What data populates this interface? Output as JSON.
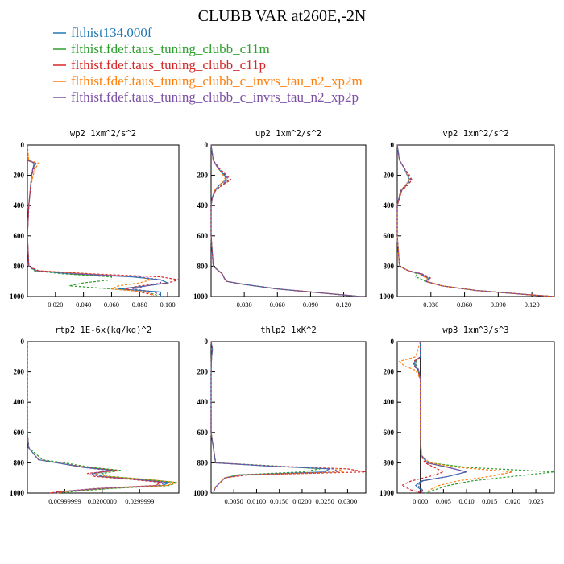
{
  "title": "CLUBB VAR at260E,-2N",
  "colors": {
    "blue": "#1f77b4",
    "green": "#2ca02c",
    "red": "#d62728",
    "orange": "#ff7f0e",
    "purple": "#7b4fa6"
  },
  "legend": [
    {
      "label": "flthist134.000f",
      "color": "#1f77b4"
    },
    {
      "label": "flthist.fdef.taus_tuning_clubb_c11m",
      "color": "#2ca02c"
    },
    {
      "label": "flthist.fdef.taus_tuning_clubb_c11p",
      "color": "#d62728"
    },
    {
      "label": "flthist.fdef.taus_tuning_clubb_c_invrs_tau_n2_xp2m",
      "color": "#ff7f0e"
    },
    {
      "label": "flthist.fdef.taus_tuning_clubb_c_invrs_tau_n2_xp2p",
      "color": "#7b4fa6"
    }
  ],
  "chart_data": [
    {
      "type": "line",
      "title": "wp2  1xm^2/s^2",
      "xlim": [
        0,
        0.108
      ],
      "ylim": [
        1000,
        0
      ],
      "xticks": [
        0.02,
        0.04,
        0.06,
        0.08,
        0.1
      ],
      "xtick_labels": [
        "0.020",
        "0.040",
        "0.060",
        "0.080",
        "0.100"
      ],
      "yticks": [
        0,
        200,
        400,
        600,
        800,
        1000
      ],
      "y": [
        0,
        100,
        120,
        150,
        200,
        300,
        400,
        600,
        800,
        830,
        850,
        870,
        890,
        910,
        930,
        950,
        970,
        990,
        1000
      ],
      "series": [
        {
          "color": "#1f77b4",
          "values": [
            0,
            0.0,
            0.006,
            0.004,
            0.003,
            0.002,
            0.001,
            0,
            0.001,
            0.006,
            0.03,
            0.075,
            0.095,
            0.1,
            0.085,
            0.065,
            0.095,
            0.095,
            0.095
          ]
        },
        {
          "color": "#2ca02c",
          "values": [
            0,
            0.0,
            0.005,
            0.004,
            0.003,
            0.002,
            0.001,
            0,
            0.001,
            0.005,
            0.025,
            0.06,
            0.06,
            0.04,
            0.03,
            0.06,
            0.085,
            0.092,
            0.092
          ]
        },
        {
          "color": "#d62728",
          "values": [
            0,
            0.0,
            0.006,
            0.005,
            0.003,
            0.002,
            0.001,
            0,
            0.001,
            0.008,
            0.045,
            0.095,
            0.108,
            0.1,
            0.08,
            0.07,
            0.08,
            0.09,
            0.09
          ]
        },
        {
          "color": "#ff7f0e",
          "values": [
            0,
            0.001,
            0.008,
            0.006,
            0.004,
            0.002,
            0.001,
            0,
            0.001,
            0.007,
            0.04,
            0.08,
            0.088,
            0.08,
            0.065,
            0.06,
            0.085,
            0.09,
            0.09
          ]
        },
        {
          "color": "#7b4fa6",
          "values": [
            0,
            0.0,
            0.005,
            0.004,
            0.003,
            0.002,
            0.001,
            0,
            0.001,
            0.006,
            0.035,
            0.08,
            0.095,
            0.095,
            0.085,
            0.075,
            0.09,
            0.095,
            0.095
          ]
        }
      ]
    },
    {
      "type": "line",
      "title": "up2  1xm^2/s^2",
      "xlim": [
        0,
        0.14
      ],
      "ylim": [
        1000,
        0
      ],
      "xticks": [
        0.03,
        0.06,
        0.09,
        0.12
      ],
      "xtick_labels": [
        "0.030",
        "0.060",
        "0.090",
        "0.120"
      ],
      "yticks": [
        0,
        200,
        400,
        600,
        800,
        1000
      ],
      "y": [
        0,
        100,
        150,
        200,
        230,
        260,
        300,
        350,
        400,
        600,
        800,
        850,
        880,
        900,
        920,
        950,
        970,
        990,
        1000
      ],
      "series": [
        {
          "color": "#1f77b4",
          "values": [
            0,
            0.002,
            0.006,
            0.012,
            0.014,
            0.008,
            0.003,
            0.001,
            0,
            0,
            0.002,
            0.01,
            0.012,
            0.014,
            0.03,
            0.06,
            0.09,
            0.12,
            0.135
          ]
        },
        {
          "color": "#2ca02c",
          "values": [
            0,
            0.002,
            0.006,
            0.013,
            0.016,
            0.01,
            0.004,
            0.001,
            0,
            0,
            0.002,
            0.01,
            0.012,
            0.014,
            0.03,
            0.06,
            0.09,
            0.12,
            0.135
          ]
        },
        {
          "color": "#d62728",
          "values": [
            0,
            0.002,
            0.007,
            0.014,
            0.018,
            0.011,
            0.004,
            0.001,
            0,
            0,
            0.002,
            0.01,
            0.012,
            0.014,
            0.03,
            0.06,
            0.09,
            0.12,
            0.135
          ]
        },
        {
          "color": "#ff7f0e",
          "values": [
            0,
            0.002,
            0.006,
            0.011,
            0.013,
            0.008,
            0.003,
            0.001,
            0,
            0,
            0.002,
            0.01,
            0.012,
            0.014,
            0.03,
            0.06,
            0.09,
            0.12,
            0.135
          ]
        },
        {
          "color": "#7b4fa6",
          "values": [
            0,
            0.002,
            0.006,
            0.013,
            0.016,
            0.01,
            0.004,
            0.001,
            0,
            0,
            0.002,
            0.01,
            0.012,
            0.014,
            0.03,
            0.06,
            0.09,
            0.12,
            0.135
          ]
        }
      ]
    },
    {
      "type": "line",
      "title": "vp2  1xm^2/s^2",
      "xlim": [
        0,
        0.14
      ],
      "ylim": [
        1000,
        0
      ],
      "xticks": [
        0.03,
        0.06,
        0.09,
        0.12
      ],
      "xtick_labels": [
        "0.030",
        "0.060",
        "0.090",
        "0.120"
      ],
      "yticks": [
        0,
        200,
        400,
        600,
        800,
        1000
      ],
      "y": [
        0,
        100,
        150,
        200,
        230,
        260,
        300,
        400,
        600,
        800,
        830,
        850,
        870,
        880,
        900,
        930,
        960,
        990,
        1000
      ],
      "series": [
        {
          "color": "#1f77b4",
          "values": [
            0,
            0.002,
            0.006,
            0.009,
            0.011,
            0.008,
            0.003,
            0,
            0,
            0.002,
            0.01,
            0.02,
            0.025,
            0.028,
            0.025,
            0.04,
            0.07,
            0.12,
            0.14
          ]
        },
        {
          "color": "#2ca02c",
          "values": [
            0,
            0.002,
            0.006,
            0.01,
            0.012,
            0.009,
            0.004,
            0,
            0,
            0.002,
            0.01,
            0.018,
            0.016,
            0.02,
            0.025,
            0.04,
            0.07,
            0.12,
            0.14
          ]
        },
        {
          "color": "#d62728",
          "values": [
            0,
            0.002,
            0.006,
            0.011,
            0.013,
            0.01,
            0.004,
            0,
            0,
            0.002,
            0.01,
            0.022,
            0.028,
            0.03,
            0.026,
            0.04,
            0.07,
            0.12,
            0.14
          ]
        },
        {
          "color": "#ff7f0e",
          "values": [
            0,
            0.002,
            0.006,
            0.009,
            0.011,
            0.008,
            0.003,
            0,
            0,
            0.002,
            0.01,
            0.02,
            0.024,
            0.027,
            0.025,
            0.04,
            0.07,
            0.12,
            0.14
          ]
        },
        {
          "color": "#7b4fa6",
          "values": [
            0,
            0.002,
            0.006,
            0.01,
            0.012,
            0.009,
            0.003,
            0,
            0,
            0.002,
            0.01,
            0.021,
            0.026,
            0.029,
            0.026,
            0.04,
            0.07,
            0.12,
            0.14
          ]
        }
      ]
    },
    {
      "type": "line",
      "title": "rtp2  1E-6x(kg/kg)^2",
      "xlim": [
        0,
        0.0405
      ],
      "ylim": [
        1000,
        0
      ],
      "xticks": [
        0.01,
        0.02,
        0.03
      ],
      "xtick_labels": [
        "0.00999999",
        "0.0200000",
        "0.0299999"
      ],
      "yticks": [
        0,
        200,
        400,
        600,
        800,
        1000
      ],
      "y": [
        0,
        200,
        400,
        600,
        700,
        780,
        800,
        830,
        850,
        870,
        890,
        910,
        930,
        950,
        970,
        990,
        1000
      ],
      "series": [
        {
          "color": "#1f77b4",
          "values": [
            0,
            0,
            0,
            0,
            0.0003,
            0.003,
            0.008,
            0.015,
            0.023,
            0.018,
            0.02,
            0.03,
            0.038,
            0.036,
            0.02,
            0.01,
            0.008
          ]
        },
        {
          "color": "#2ca02c",
          "values": [
            0,
            0,
            0,
            0,
            0.0004,
            0.004,
            0.01,
            0.017,
            0.025,
            0.02,
            0.022,
            0.032,
            0.04,
            0.038,
            0.022,
            0.012,
            0.01
          ]
        },
        {
          "color": "#d62728",
          "values": [
            0,
            0,
            0,
            0,
            0.0003,
            0.003,
            0.008,
            0.016,
            0.024,
            0.016,
            0.018,
            0.028,
            0.036,
            0.034,
            0.018,
            0.009,
            0.006
          ]
        },
        {
          "color": "#ff7f0e",
          "values": [
            0,
            0,
            0,
            0,
            0.0003,
            0.003,
            0.008,
            0.015,
            0.022,
            0.018,
            0.021,
            0.032,
            0.04,
            0.037,
            0.02,
            0.01,
            0.008
          ]
        },
        {
          "color": "#7b4fa6",
          "values": [
            0,
            0,
            0,
            0,
            0.0003,
            0.003,
            0.008,
            0.015,
            0.022,
            0.017,
            0.019,
            0.029,
            0.037,
            0.035,
            0.019,
            0.009,
            0.007
          ]
        }
      ]
    },
    {
      "type": "line",
      "title": "thlp2  1xK^2",
      "xlim": [
        0,
        0.034
      ],
      "ylim": [
        1000,
        0
      ],
      "xticks": [
        0.005,
        0.01,
        0.015,
        0.02,
        0.025,
        0.03
      ],
      "xtick_labels": [
        "0.0050",
        "0.0100",
        "0.0150",
        "0.0200",
        "0.0250",
        "0.0300"
      ],
      "yticks": [
        0,
        200,
        400,
        600,
        800,
        1000
      ],
      "y": [
        0,
        50,
        100,
        200,
        400,
        600,
        800,
        820,
        840,
        860,
        880,
        900,
        930,
        960,
        990,
        1000
      ],
      "series": [
        {
          "color": "#1f77b4",
          "values": [
            0,
            0.0003,
            0.0001,
            0,
            0,
            0,
            0.001,
            0.012,
            0.026,
            0.025,
            0.006,
            0.003,
            0.002,
            0.001,
            0.0006,
            0.0005
          ]
        },
        {
          "color": "#2ca02c",
          "values": [
            0,
            0.0003,
            0.0001,
            0,
            0,
            0,
            0.001,
            0.014,
            0.024,
            0.02,
            0.006,
            0.003,
            0.002,
            0.001,
            0.0006,
            0.0005
          ]
        },
        {
          "color": "#d62728",
          "values": [
            0,
            0.0003,
            0.0001,
            0,
            0,
            0,
            0.001,
            0.013,
            0.03,
            0.034,
            0.008,
            0.003,
            0.002,
            0.001,
            0.0006,
            0.0005
          ]
        },
        {
          "color": "#ff7f0e",
          "values": [
            0,
            0.0003,
            0.0001,
            0,
            0,
            0,
            0.001,
            0.012,
            0.028,
            0.029,
            0.007,
            0.003,
            0.002,
            0.001,
            0.0006,
            0.0005
          ]
        },
        {
          "color": "#7b4fa6",
          "values": [
            0,
            0.0003,
            0.0001,
            0,
            0,
            0,
            0.001,
            0.012,
            0.027,
            0.028,
            0.007,
            0.003,
            0.002,
            0.001,
            0.0006,
            0.0005
          ]
        }
      ]
    },
    {
      "type": "line",
      "title": "wp3  1xm^3/s^3",
      "xlim": [
        -0.005,
        0.029
      ],
      "ylim": [
        1000,
        0
      ],
      "xticks": [
        0.0,
        0.005,
        0.01,
        0.015,
        0.02,
        0.025
      ],
      "xtick_labels": [
        "0.000",
        "0.005",
        "0.010",
        "0.015",
        "0.020",
        "0.025"
      ],
      "yticks": [
        0,
        200,
        400,
        600,
        800,
        1000
      ],
      "y": [
        0,
        100,
        130,
        160,
        190,
        250,
        400,
        600,
        750,
        800,
        830,
        860,
        890,
        920,
        950,
        980,
        1000
      ],
      "series": [
        {
          "color": "#1f77b4",
          "values": [
            0,
            0,
            -0.0012,
            -0.0012,
            -0.0005,
            0,
            0,
            0,
            0.0002,
            0.0015,
            0.006,
            0.01,
            0.006,
            0.0002,
            -0.001,
            0.0002,
            0.0005
          ]
        },
        {
          "color": "#2ca02c",
          "values": [
            0,
            0,
            -0.001,
            -0.001,
            -0.0004,
            0,
            0,
            0,
            0.0002,
            0.002,
            0.01,
            0.029,
            0.02,
            0.011,
            0.006,
            0.003,
            0.001
          ]
        },
        {
          "color": "#d62728",
          "values": [
            0,
            0,
            -0.0014,
            -0.0014,
            -0.0005,
            0,
            0,
            0,
            0.0002,
            0.001,
            0.003,
            0.005,
            0.002,
            -0.002,
            -0.004,
            -0.002,
            0.0005
          ]
        },
        {
          "color": "#ff7f0e",
          "values": [
            0,
            -0.001,
            -0.0045,
            -0.0035,
            -0.001,
            0,
            0,
            0,
            0.0002,
            0.002,
            0.008,
            0.02,
            0.015,
            0.008,
            0.004,
            0.002,
            0.001
          ]
        },
        {
          "color": "#7b4fa6",
          "values": [
            0,
            0,
            -0.0008,
            -0.0008,
            -0.0003,
            0,
            0,
            0,
            0.0002,
            0.0015,
            0.006,
            0.01,
            0.006,
            0.0005,
            -0.0005,
            0.0005,
            0.0005
          ]
        }
      ]
    }
  ]
}
